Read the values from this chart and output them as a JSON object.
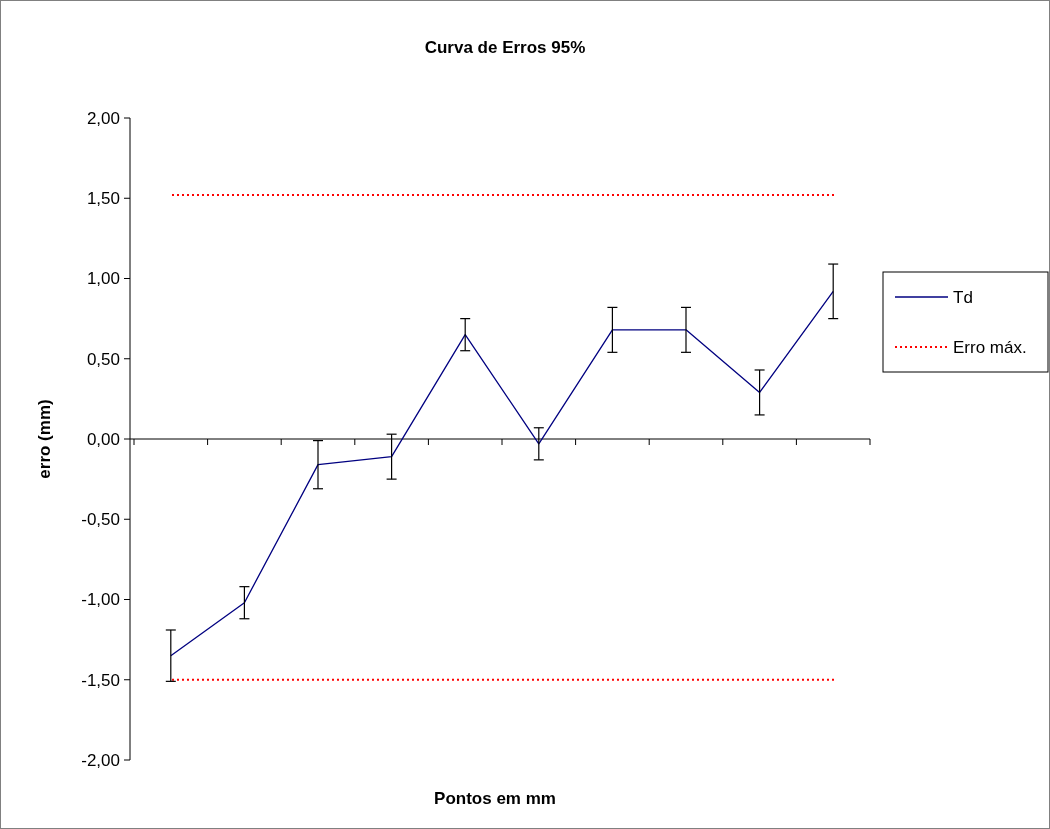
{
  "chart_data": {
    "type": "line",
    "title": "Curva de Erros 95%",
    "xlabel": "Pontos em mm",
    "ylabel": "erro (mm)",
    "categories": [
      null,
      null,
      null,
      null,
      null,
      null,
      null,
      null,
      null,
      null
    ],
    "series": [
      {
        "name": "Td",
        "color": "#000080",
        "values": [
          -1.35,
          -1.02,
          -0.16,
          -0.11,
          0.65,
          -0.03,
          0.68,
          0.68,
          0.29,
          0.92
        ],
        "errors": [
          0.16,
          0.1,
          0.15,
          0.14,
          0.1,
          0.1,
          0.14,
          0.14,
          0.14,
          0.17
        ]
      }
    ],
    "ylim": [
      -2,
      2
    ],
    "yticks": [
      {
        "value": -2,
        "label": "-2,00"
      },
      {
        "value": -1.5,
        "label": "-1,50"
      },
      {
        "value": -1,
        "label": "-1,00"
      },
      {
        "value": -0.5,
        "label": "-0,50"
      },
      {
        "value": 0,
        "label": "0,00"
      },
      {
        "value": 0.5,
        "label": "0,50"
      },
      {
        "value": 1,
        "label": "1,00"
      },
      {
        "value": 1.5,
        "label": "1,50"
      },
      {
        "value": 2,
        "label": "2,00"
      }
    ],
    "ref_lines": [
      {
        "axis": "y",
        "value": 1.52,
        "label": "Erro máx.",
        "color": "#ff0000",
        "line_style": "dotted"
      },
      {
        "axis": "y",
        "value": -1.5,
        "label": null,
        "color": "#ff0000",
        "line_style": "dotted"
      }
    ],
    "legend": "right",
    "grid": false,
    "marker": "none",
    "line_style": "solid"
  }
}
